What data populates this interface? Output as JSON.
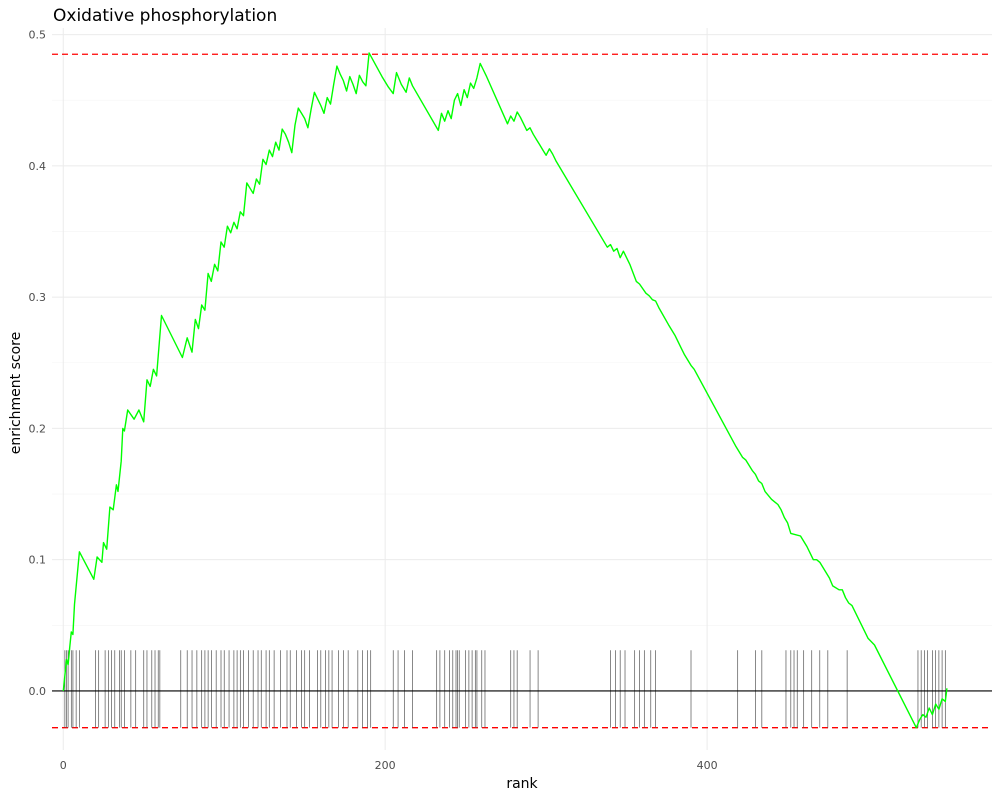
{
  "chart_data": {
    "type": "line",
    "title": "Oxidative phosphorylation",
    "xlabel": "rank",
    "ylabel": "enrichment score",
    "xlim": [
      -7,
      577
    ],
    "ylim": [
      -0.045,
      0.505
    ],
    "x_ticks": [
      {
        "value": 0,
        "label": "0"
      },
      {
        "value": 200,
        "label": "200"
      },
      {
        "value": 400,
        "label": "400"
      }
    ],
    "y_ticks": [
      {
        "value": 0.0,
        "label": "0.0"
      },
      {
        "value": 0.1,
        "label": "0.1"
      },
      {
        "value": 0.2,
        "label": "0.2"
      },
      {
        "value": 0.3,
        "label": "0.3"
      },
      {
        "value": 0.4,
        "label": "0.4"
      },
      {
        "value": 0.5,
        "label": "0.5"
      }
    ],
    "grid": true,
    "colors": {
      "line": "#00ff00",
      "dashed": "#ff0000",
      "baseline": "#000000",
      "ticks": "#555555",
      "grid": "#ebebeb"
    },
    "dashed_lines": [
      0.485,
      -0.028
    ],
    "hit_range": [
      0,
      0.031
    ],
    "series": [
      {
        "x": [
          0,
          1,
          2,
          3,
          4,
          5,
          6,
          7,
          10,
          19,
          21,
          24,
          25,
          27,
          29,
          31,
          33,
          34,
          36,
          37,
          38,
          40,
          44,
          47,
          50,
          52,
          54,
          56,
          58,
          61,
          74,
          77,
          80,
          82,
          84,
          86,
          88,
          90,
          92,
          94,
          96,
          98,
          100,
          102,
          104,
          106,
          108,
          110,
          112,
          114,
          116,
          118,
          120,
          122,
          124,
          126,
          128,
          130,
          132,
          134,
          136,
          138,
          140,
          142,
          144,
          146,
          148,
          150,
          152,
          154,
          156,
          158,
          160,
          162,
          164,
          166,
          168,
          170,
          172,
          174,
          176,
          178,
          180,
          182,
          184,
          186,
          188,
          190,
          198,
          202,
          205,
          207,
          210,
          213,
          215,
          217,
          233,
          235,
          237,
          239,
          241,
          243,
          245,
          247,
          249,
          251,
          253,
          255,
          257,
          259,
          261,
          263,
          276,
          278,
          280,
          282,
          284,
          286,
          288,
          290,
          292,
          294,
          296,
          298,
          300,
          302,
          304,
          306,
          338,
          340,
          342,
          344,
          346,
          348,
          352,
          356,
          358,
          362,
          364,
          366,
          368,
          370,
          376,
          380,
          384,
          386,
          390,
          392,
          418,
          422,
          424,
          428,
          430,
          432,
          434,
          436,
          440,
          442,
          444,
          446,
          448,
          450,
          452,
          458,
          462,
          464,
          466,
          468,
          470,
          472,
          476,
          478,
          482,
          484,
          486,
          488,
          490,
          500,
          504,
          530,
          532,
          534,
          536,
          538,
          540,
          542,
          544,
          546,
          548,
          549
        ],
        "y": [
          0.0,
          0.012,
          0.024,
          0.02,
          0.033,
          0.045,
          0.043,
          0.066,
          0.106,
          0.085,
          0.102,
          0.098,
          0.113,
          0.108,
          0.14,
          0.138,
          0.157,
          0.152,
          0.175,
          0.2,
          0.198,
          0.214,
          0.207,
          0.214,
          0.205,
          0.237,
          0.232,
          0.245,
          0.24,
          0.286,
          0.254,
          0.269,
          0.258,
          0.283,
          0.276,
          0.294,
          0.29,
          0.318,
          0.312,
          0.325,
          0.32,
          0.342,
          0.338,
          0.354,
          0.349,
          0.357,
          0.352,
          0.365,
          0.362,
          0.387,
          0.383,
          0.379,
          0.39,
          0.386,
          0.405,
          0.401,
          0.412,
          0.407,
          0.418,
          0.412,
          0.428,
          0.424,
          0.418,
          0.41,
          0.431,
          0.444,
          0.44,
          0.436,
          0.429,
          0.443,
          0.456,
          0.451,
          0.446,
          0.44,
          0.452,
          0.447,
          0.462,
          0.476,
          0.47,
          0.465,
          0.457,
          0.468,
          0.462,
          0.455,
          0.469,
          0.464,
          0.461,
          0.486,
          0.468,
          0.46,
          0.455,
          0.471,
          0.462,
          0.456,
          0.467,
          0.461,
          0.427,
          0.44,
          0.434,
          0.442,
          0.436,
          0.45,
          0.455,
          0.446,
          0.458,
          0.452,
          0.463,
          0.459,
          0.467,
          0.478,
          0.473,
          0.468,
          0.432,
          0.438,
          0.434,
          0.441,
          0.437,
          0.432,
          0.427,
          0.429,
          0.424,
          0.42,
          0.416,
          0.412,
          0.408,
          0.413,
          0.409,
          0.404,
          0.338,
          0.34,
          0.335,
          0.337,
          0.33,
          0.335,
          0.325,
          0.312,
          0.31,
          0.303,
          0.301,
          0.298,
          0.297,
          0.292,
          0.279,
          0.271,
          0.261,
          0.256,
          0.248,
          0.245,
          0.186,
          0.178,
          0.176,
          0.168,
          0.165,
          0.16,
          0.158,
          0.152,
          0.146,
          0.144,
          0.142,
          0.138,
          0.132,
          0.128,
          0.12,
          0.118,
          0.11,
          0.105,
          0.1,
          0.1,
          0.098,
          0.094,
          0.086,
          0.08,
          0.077,
          0.077,
          0.071,
          0.067,
          0.065,
          0.04,
          0.035,
          -0.028,
          -0.022,
          -0.018,
          -0.02,
          -0.013,
          -0.018,
          -0.01,
          -0.014,
          -0.006,
          -0.008,
          0.002
        ]
      }
    ],
    "hits": [
      1,
      2,
      3,
      5,
      6,
      8,
      10,
      20,
      22,
      26,
      28,
      30,
      32,
      35,
      36,
      38,
      42,
      45,
      50,
      52,
      55,
      57,
      59,
      60,
      73,
      77,
      80,
      83,
      86,
      88,
      90,
      92,
      95,
      98,
      100,
      103,
      106,
      108,
      110,
      112,
      115,
      118,
      121,
      123,
      126,
      128,
      131,
      135,
      139,
      141,
      145,
      148,
      150,
      153,
      158,
      160,
      163,
      165,
      167,
      171,
      174,
      177,
      183,
      186,
      189,
      191,
      205,
      208,
      212,
      217,
      232,
      234,
      237,
      240,
      242,
      244,
      245,
      246,
      250,
      252,
      254,
      256,
      257,
      260,
      262,
      278,
      280,
      282,
      290,
      295,
      340,
      343,
      346,
      349,
      355,
      358,
      361,
      365,
      368,
      390,
      419,
      430,
      434,
      449,
      452,
      454,
      456,
      460,
      465,
      470,
      475,
      487,
      531,
      533,
      535,
      537,
      540,
      542,
      544,
      546,
      548
    ]
  }
}
